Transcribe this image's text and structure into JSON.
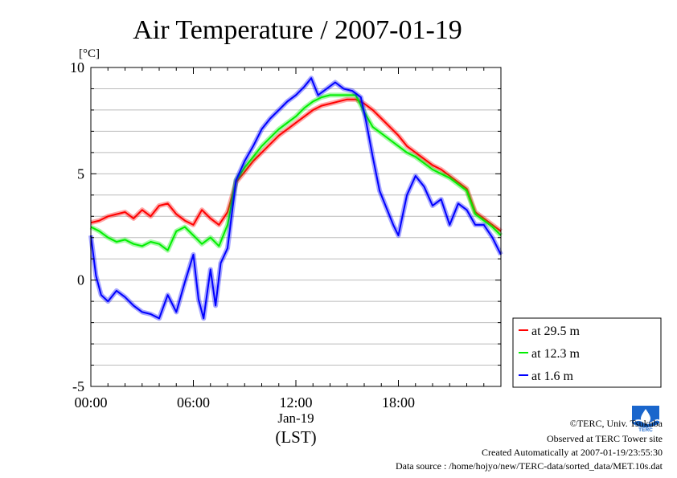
{
  "chart_data": {
    "type": "line",
    "title": "Air Temperature / 2007-01-19",
    "ylabel": "[°C]",
    "xlabel": "(LST)",
    "date_label": "Jan-19",
    "ylim": [
      -5,
      10
    ],
    "xlim": [
      0,
      24
    ],
    "yticks": [
      {
        "v": 10,
        "label": "10"
      },
      {
        "v": 5,
        "label": "5"
      },
      {
        "v": 0,
        "label": "0"
      },
      {
        "v": -5,
        "label": "-5"
      }
    ],
    "xticks": [
      {
        "v": 0,
        "label": "00:00"
      },
      {
        "v": 6,
        "label": "06:00"
      },
      {
        "v": 12,
        "label": "12:00"
      },
      {
        "v": 18,
        "label": "18:00"
      }
    ],
    "grid": true,
    "legend_position": "lower-right outside",
    "series": [
      {
        "name": "at 29.5 m",
        "color": "#ff0000",
        "x": [
          0,
          0.5,
          1,
          1.5,
          2,
          2.5,
          3,
          3.5,
          4,
          4.5,
          5,
          5.5,
          6,
          6.5,
          7,
          7.5,
          8,
          8.5,
          9,
          9.5,
          10,
          10.5,
          11,
          11.5,
          12,
          12.5,
          13,
          13.5,
          14,
          14.5,
          15,
          15.5,
          16,
          16.5,
          17,
          17.5,
          18,
          18.5,
          19,
          19.5,
          20,
          20.5,
          21,
          21.5,
          22,
          22.5,
          23,
          23.5,
          24
        ],
        "y": [
          2.7,
          2.8,
          3.0,
          3.1,
          3.2,
          2.9,
          3.3,
          3.0,
          3.5,
          3.6,
          3.1,
          2.8,
          2.6,
          3.3,
          2.9,
          2.6,
          3.2,
          4.6,
          5.1,
          5.6,
          6.0,
          6.4,
          6.8,
          7.1,
          7.4,
          7.7,
          8.0,
          8.2,
          8.3,
          8.4,
          8.5,
          8.5,
          8.3,
          8.0,
          7.6,
          7.2,
          6.8,
          6.3,
          6.0,
          5.7,
          5.4,
          5.2,
          4.9,
          4.6,
          4.3,
          3.2,
          2.9,
          2.6,
          2.3
        ]
      },
      {
        "name": "at 12.3 m",
        "color": "#00ee00",
        "x": [
          0,
          0.5,
          1,
          1.5,
          2,
          2.5,
          3,
          3.5,
          4,
          4.5,
          5,
          5.5,
          6,
          6.5,
          7,
          7.5,
          8,
          8.5,
          9,
          9.5,
          10,
          10.5,
          11,
          11.5,
          12,
          12.5,
          13,
          13.5,
          14,
          14.5,
          15,
          15.5,
          16,
          16.5,
          17,
          17.5,
          18,
          18.5,
          19,
          19.5,
          20,
          20.5,
          21,
          21.5,
          22,
          22.5,
          23,
          23.5,
          24
        ],
        "y": [
          2.5,
          2.3,
          2.0,
          1.8,
          1.9,
          1.7,
          1.6,
          1.8,
          1.7,
          1.4,
          2.3,
          2.5,
          2.1,
          1.7,
          2.0,
          1.6,
          2.6,
          4.7,
          5.3,
          5.8,
          6.3,
          6.7,
          7.1,
          7.4,
          7.7,
          8.1,
          8.4,
          8.6,
          8.7,
          8.7,
          8.7,
          8.7,
          7.9,
          7.2,
          6.9,
          6.6,
          6.3,
          6.0,
          5.8,
          5.5,
          5.2,
          5.0,
          4.8,
          4.5,
          4.2,
          3.1,
          2.8,
          2.5,
          2.1
        ]
      },
      {
        "name": "at 1.6 m",
        "color": "#0000ff",
        "x": [
          0,
          0.3,
          0.6,
          1,
          1.5,
          2,
          2.5,
          3,
          3.5,
          4,
          4.5,
          5,
          5.5,
          6,
          6.3,
          6.6,
          7,
          7.3,
          7.6,
          8,
          8.5,
          9,
          9.5,
          10,
          10.5,
          11,
          11.5,
          12,
          12.5,
          12.9,
          13.3,
          13.8,
          14.3,
          14.8,
          15.3,
          15.8,
          16.1,
          16.5,
          16.9,
          17.3,
          17.7,
          18,
          18.5,
          19,
          19.5,
          20,
          20.5,
          21,
          21.5,
          22,
          22.5,
          23,
          23.5,
          24
        ],
        "y": [
          2.1,
          0.2,
          -0.7,
          -1.0,
          -0.5,
          -0.8,
          -1.2,
          -1.5,
          -1.6,
          -1.8,
          -0.7,
          -1.5,
          -0.1,
          1.2,
          -0.9,
          -1.8,
          0.5,
          -1.2,
          0.8,
          1.5,
          4.7,
          5.6,
          6.3,
          7.1,
          7.6,
          8.0,
          8.4,
          8.7,
          9.1,
          9.5,
          8.7,
          9.0,
          9.3,
          9.0,
          8.9,
          8.6,
          7.5,
          5.8,
          4.2,
          3.4,
          2.6,
          2.1,
          4.0,
          4.9,
          4.4,
          3.5,
          3.8,
          2.6,
          3.6,
          3.3,
          2.6,
          2.6,
          2.0,
          1.2
        ]
      }
    ]
  },
  "footer": {
    "copyright": "©TERC, Univ. Tsukuba",
    "observed": "Observed at TERC Tower site",
    "created": "Created Automatically at 2007-01-19/23:55:30",
    "source": "Data source : /home/hojyo/new/TERC-data/sorted_data/MET.10s.dat"
  },
  "logo": {
    "text": "TERC",
    "color": "#1166cc"
  }
}
